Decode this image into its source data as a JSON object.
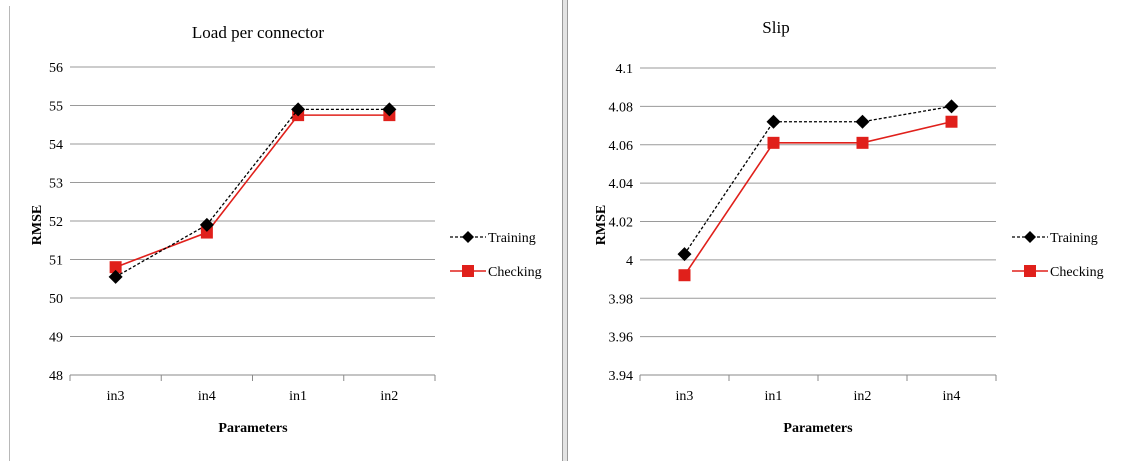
{
  "chart_data": [
    {
      "type": "line",
      "title": "Load per connector",
      "xlabel": "Parameters",
      "ylabel": "RMSE",
      "categories": [
        "in3",
        "in4",
        "in1",
        "in2"
      ],
      "ylim": [
        48,
        56
      ],
      "yticks": [
        "48",
        "49",
        "50",
        "51",
        "52",
        "53",
        "54",
        "55",
        "56"
      ],
      "grid": true,
      "legend_position": "right",
      "series": [
        {
          "name": "Training",
          "values": [
            50.55,
            51.9,
            54.9,
            54.9
          ],
          "color": "#000000",
          "line_style": "dashed",
          "marker": "diamond"
        },
        {
          "name": "Checking",
          "values": [
            50.8,
            51.7,
            54.75,
            54.75
          ],
          "color": "#e0201b",
          "line_style": "solid",
          "marker": "square"
        }
      ]
    },
    {
      "type": "line",
      "title": "Slip",
      "xlabel": "Parameters",
      "ylabel": "RMSE",
      "categories": [
        "in3",
        "in1",
        "in2",
        "in4"
      ],
      "ylim": [
        3.94,
        4.1
      ],
      "yticks": [
        "3.94",
        "3.96",
        "3.98",
        "4",
        "4.02",
        "4.04",
        "4.06",
        "4.08",
        "4.1"
      ],
      "grid": true,
      "legend_position": "right",
      "series": [
        {
          "name": "Training",
          "values": [
            4.003,
            4.072,
            4.072,
            4.08
          ],
          "color": "#000000",
          "line_style": "dashed",
          "marker": "diamond"
        },
        {
          "name": "Checking",
          "values": [
            3.992,
            4.061,
            4.061,
            4.072
          ],
          "color": "#e0201b",
          "line_style": "solid",
          "marker": "square"
        }
      ]
    }
  ]
}
